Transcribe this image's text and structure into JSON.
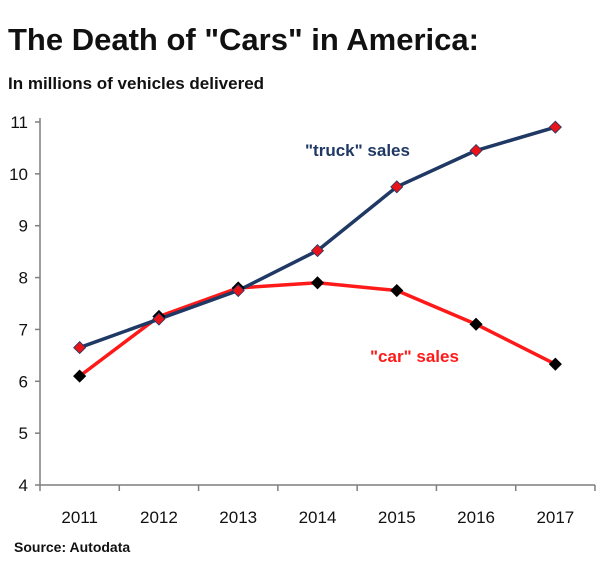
{
  "chart_data": {
    "type": "line",
    "title": "The Death of \"Cars\" in America:",
    "subtitle": "In millions of vehicles delivered",
    "source": "Source: Autodata",
    "xlabel": "",
    "ylabel": "",
    "x": [
      "2011",
      "2012",
      "2013",
      "2014",
      "2015",
      "2016",
      "2017"
    ],
    "ylim": [
      4,
      11
    ],
    "yticks": [
      4,
      5,
      6,
      7,
      8,
      9,
      10,
      11
    ],
    "grid": false,
    "series": [
      {
        "name": "\"truck\" sales",
        "label": "\"truck\" sales",
        "color": "#1f3864",
        "marker_color": "#e8141a",
        "values": [
          6.65,
          7.2,
          7.75,
          8.52,
          9.75,
          10.45,
          10.9
        ]
      },
      {
        "name": "\"car\" sales",
        "label": "\"car\" sales",
        "color": "#ff1a1a",
        "marker_color": "#000000",
        "values": [
          6.1,
          7.25,
          7.8,
          7.9,
          7.75,
          7.1,
          6.33
        ]
      }
    ]
  }
}
